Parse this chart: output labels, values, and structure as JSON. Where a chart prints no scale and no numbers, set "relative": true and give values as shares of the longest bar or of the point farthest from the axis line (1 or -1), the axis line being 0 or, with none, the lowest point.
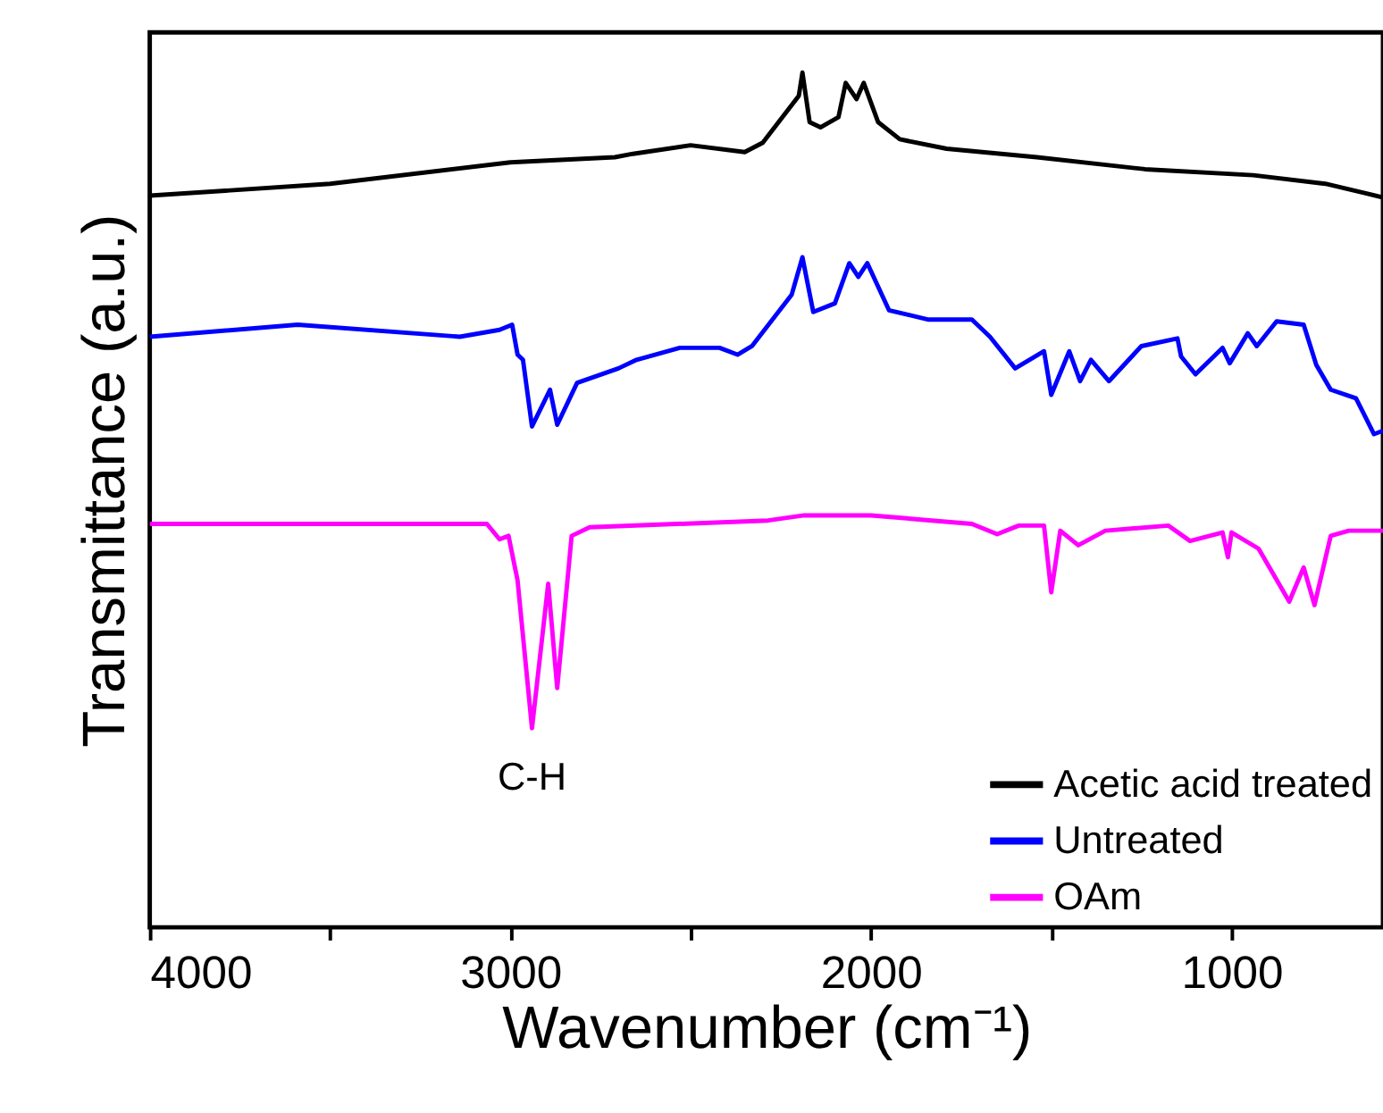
{
  "chart_data": {
    "type": "line",
    "relative": true,
    "xlabel": "Wavenumber (cm⁻¹)",
    "ylabel": "Transmittance (a.u.)",
    "xlim": [
      4000,
      580
    ],
    "xticks": [
      4000,
      {
        "value": 3500,
        "label": null
      },
      3000,
      {
        "value": 2500,
        "label": null
      },
      2000,
      {
        "value": 1500,
        "label": null
      },
      1000
    ],
    "legend": "bottom right",
    "grid": false,
    "marker": "none",
    "line_style": "solid",
    "annotations": [
      "C-H"
    ],
    "series": [
      {
        "name": "Acetic acid treated",
        "color": "#000000",
        "x": [
          4000,
          3500,
          3000,
          2710,
          2660,
          2500,
          2350,
          2300,
          2200,
          2190,
          2170,
          2140,
          2090,
          2070,
          2040,
          2020,
          1980,
          1920,
          1790,
          1540,
          1240,
          940,
          740,
          580
        ],
        "values": [
          0.856,
          0.87,
          0.895,
          0.901,
          0.905,
          0.915,
          0.907,
          0.918,
          0.973,
          1.0,
          0.942,
          0.936,
          0.948,
          0.988,
          0.969,
          0.988,
          0.942,
          0.922,
          0.911,
          0.901,
          0.887,
          0.88,
          0.87,
          0.854
        ]
      },
      {
        "name": "Untreated",
        "color": "#0000ff",
        "x": [
          4000,
          3590,
          3140,
          3030,
          2995,
          2980,
          2965,
          2940,
          2890,
          2870,
          2815,
          2700,
          2650,
          2530,
          2420,
          2370,
          2330,
          2220,
          2190,
          2160,
          2100,
          2060,
          2035,
          2010,
          1950,
          1840,
          1720,
          1670,
          1600,
          1520,
          1500,
          1450,
          1420,
          1390,
          1340,
          1250,
          1150,
          1140,
          1100,
          1025,
          1005,
          955,
          930,
          875,
          800,
          765,
          725,
          655,
          605,
          580
        ],
        "values": [
          0.691,
          0.705,
          0.691,
          0.699,
          0.705,
          0.67,
          0.664,
          0.586,
          0.629,
          0.588,
          0.637,
          0.654,
          0.664,
          0.678,
          0.678,
          0.67,
          0.68,
          0.74,
          0.784,
          0.72,
          0.73,
          0.777,
          0.761,
          0.777,
          0.722,
          0.711,
          0.711,
          0.691,
          0.654,
          0.674,
          0.623,
          0.674,
          0.639,
          0.664,
          0.639,
          0.68,
          0.689,
          0.668,
          0.647,
          0.678,
          0.66,
          0.695,
          0.68,
          0.709,
          0.705,
          0.658,
          0.629,
          0.619,
          0.577,
          0.581
        ]
      },
      {
        "name": "OAm",
        "color": "#ff00ff",
        "x": [
          4000,
          3065,
          3030,
          3005,
          2980,
          2940,
          2895,
          2870,
          2830,
          2780,
          2285,
          2185,
          2000,
          1720,
          1650,
          1590,
          1520,
          1500,
          1475,
          1425,
          1350,
          1175,
          1115,
          1025,
          1010,
          1000,
          925,
          840,
          800,
          770,
          725,
          675,
          580
        ],
        "values": [
          0.472,
          0.472,
          0.454,
          0.458,
          0.406,
          0.233,
          0.402,
          0.28,
          0.458,
          0.468,
          0.476,
          0.482,
          0.482,
          0.472,
          0.46,
          0.47,
          0.47,
          0.392,
          0.464,
          0.447,
          0.464,
          0.47,
          0.452,
          0.462,
          0.433,
          0.462,
          0.443,
          0.381,
          0.421,
          0.377,
          0.458,
          0.464,
          0.464
        ]
      }
    ]
  }
}
